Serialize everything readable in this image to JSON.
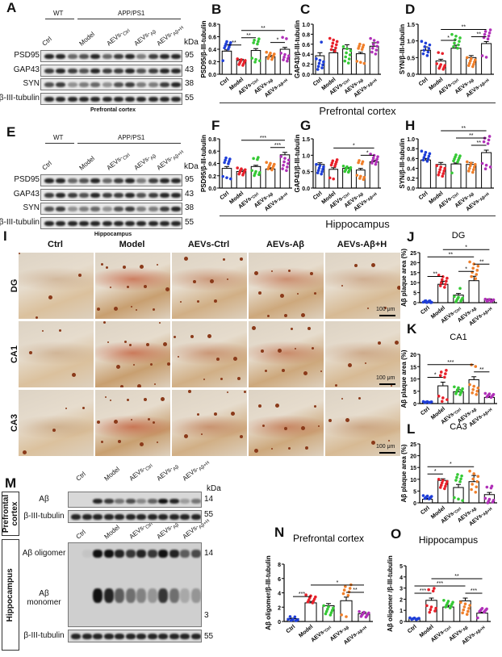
{
  "colors": {
    "Ctrl": "#1f3fd8",
    "Model": "#e8202a",
    "AEVs-Ctrl": "#35c935",
    "AEVs-Aβ": "#f07f2a",
    "AEVs-Aβ+H": "#b030b8"
  },
  "groups": [
    {
      "main": "Ctrl",
      "sub": ""
    },
    {
      "main": "Model",
      "sub": ""
    },
    {
      "main": "AEVs-",
      "sub": "Ctrl"
    },
    {
      "main": "AEVs-",
      "sub": "Aβ"
    },
    {
      "main": "AEVs-",
      "sub": "Aβ+H"
    }
  ],
  "panelA": {
    "letter": "A",
    "wt": "WT",
    "app": "APP/PS1",
    "kda": "kDa",
    "rows": [
      "PSD95",
      "GAP43",
      "SYN",
      "β-III-tubulin"
    ],
    "sizes": [
      "95",
      "43",
      "38",
      "55"
    ],
    "caption": "Prefrontal cortex"
  },
  "panelE": {
    "letter": "E",
    "wt": "WT",
    "app": "APP/PS1",
    "kda": "kDa",
    "rows": [
      "PSD95",
      "GAP43",
      "SYN",
      "β-III-tubulin"
    ],
    "sizes": [
      "95",
      "43",
      "38",
      "55"
    ],
    "caption": "Hippocampus"
  },
  "captions": {
    "prefrontal": "Prefrontal cortex",
    "hippocampus": "Hippocampus"
  },
  "panelI": {
    "letter": "I",
    "columns": [
      "Ctrl",
      "Model",
      "AEVs-Ctrl",
      "AEVs-Aβ",
      "AEVs-Aβ+H"
    ],
    "rows": [
      "DG",
      "CA1",
      "CA3"
    ],
    "scale": "100 μm"
  },
  "panelM": {
    "letter": "M",
    "kda": "kDa",
    "pfc_label": "Prefrontal cortex",
    "hip_label": "Hippocampus",
    "pfc_rows": [
      "Aβ",
      "β-III-tubulin"
    ],
    "pfc_sizes": [
      "14",
      "55"
    ],
    "hip_rows": [
      "Aβ oligomer",
      "Aβ monomer",
      "β-III-tubulin"
    ],
    "hip_sizes": [
      "14",
      "3",
      "55"
    ]
  },
  "chart_data": [
    {
      "id": "B",
      "type": "bar",
      "title": "",
      "ylabel": "PSD95/β-III-tubulin",
      "ylim": [
        0,
        0.8
      ],
      "ticks": [
        "0.0",
        "0.2",
        "0.4",
        "0.6",
        "0.8"
      ],
      "values": [
        0.37,
        0.22,
        0.38,
        0.28,
        0.4
      ],
      "sem": [
        0.02,
        0.02,
        0.03,
        0.02,
        0.03
      ],
      "sig": [
        [
          0,
          1,
          "**"
        ],
        [
          1,
          2,
          "**"
        ],
        [
          1,
          4,
          "**"
        ],
        [
          3,
          4,
          "*"
        ]
      ]
    },
    {
      "id": "C",
      "type": "bar",
      "title": "",
      "ylabel": "GAP43/β-III-tubulin",
      "ylim": [
        0,
        1.0
      ],
      "ticks": [
        "0.0",
        "0.2",
        "0.4",
        "0.6",
        "0.8",
        "1.0"
      ],
      "values": [
        0.37,
        0.43,
        0.51,
        0.41,
        0.56
      ],
      "sem": [
        0.06,
        0.06,
        0.08,
        0.03,
        0.07
      ],
      "sig": []
    },
    {
      "id": "D",
      "type": "bar",
      "title": "",
      "ylabel": "SYN/β-III-tubulin",
      "ylim": [
        0,
        1.5
      ],
      "ticks": [
        "0.0",
        "0.5",
        "1.0",
        "1.5"
      ],
      "values": [
        0.72,
        0.4,
        0.78,
        0.5,
        0.92
      ],
      "sem": [
        0.1,
        0.05,
        0.09,
        0.06,
        0.06
      ],
      "sig": [
        [
          1,
          2,
          "*"
        ],
        [
          1,
          4,
          "**"
        ],
        [
          3,
          4,
          "**"
        ]
      ]
    },
    {
      "id": "F",
      "type": "bar",
      "title": "",
      "ylabel": "PSD95/β-III-tubulin",
      "ylim": [
        0,
        0.8
      ],
      "ticks": [
        "0.0",
        "0.2",
        "0.4",
        "0.6",
        "0.8"
      ],
      "values": [
        0.32,
        0.27,
        0.35,
        0.31,
        0.54
      ],
      "sem": [
        0.03,
        0.02,
        0.02,
        0.02,
        0.04
      ],
      "sig": [
        [
          1,
          4,
          "***"
        ],
        [
          3,
          4,
          "***"
        ]
      ]
    },
    {
      "id": "G",
      "type": "bar",
      "title": "",
      "ylabel": "GAP43/β-III-tubulin",
      "ylim": [
        0,
        1.5
      ],
      "ticks": [
        "0.0",
        "0.5",
        "1.0",
        "1.5"
      ],
      "values": [
        0.72,
        0.57,
        0.6,
        0.55,
        0.8
      ],
      "sem": [
        0.05,
        0.05,
        0.02,
        0.05,
        0.05
      ],
      "sig": [
        [
          1,
          4,
          "*"
        ],
        [
          3,
          4,
          "*"
        ]
      ]
    },
    {
      "id": "H",
      "type": "bar",
      "title": "",
      "ylabel": "SYN/β-III-tubulin",
      "ylim": [
        0,
        1.0
      ],
      "ticks": [
        "0.0",
        "0.2",
        "0.4",
        "0.6",
        "0.8",
        "1.0"
      ],
      "values": [
        0.57,
        0.48,
        0.49,
        0.48,
        0.72
      ],
      "sem": [
        0.03,
        0.04,
        0.02,
        0.04,
        0.05
      ],
      "sig": [
        [
          1,
          4,
          "**"
        ],
        [
          2,
          4,
          "**"
        ],
        [
          3,
          4,
          "**"
        ]
      ]
    },
    {
      "id": "J",
      "type": "bar",
      "title": "DG",
      "ylabel": "Aβ plaque area (%)",
      "ylim": [
        0,
        25
      ],
      "ticks": [
        "0",
        "5",
        "10",
        "15",
        "20",
        "25"
      ],
      "values": [
        0.5,
        9.2,
        3.8,
        11,
        1.6
      ],
      "sem": [
        0.1,
        1.5,
        0.8,
        2.2,
        0.3
      ],
      "sig": [
        [
          0,
          1,
          "**"
        ],
        [
          0,
          3,
          "**"
        ],
        [
          1,
          4,
          "*"
        ],
        [
          2,
          3,
          "*"
        ],
        [
          3,
          4,
          "**"
        ]
      ]
    },
    {
      "id": "K",
      "type": "bar",
      "title": "CA1",
      "ylabel": "Aβ plaque area (%)",
      "ylim": [
        0,
        20
      ],
      "ticks": [
        "0",
        "5",
        "10",
        "15",
        "20"
      ],
      "values": [
        0.7,
        7.2,
        4.8,
        9.7,
        2.5
      ],
      "sem": [
        0.1,
        1.5,
        0.8,
        1.2,
        0.4
      ],
      "sig": [
        [
          0,
          1,
          "*"
        ],
        [
          0,
          3,
          "***"
        ],
        [
          3,
          4,
          "**"
        ]
      ]
    },
    {
      "id": "L",
      "type": "bar",
      "title": "CA3",
      "ylabel": "Aβ plaque area (%)",
      "ylim": [
        0,
        25
      ],
      "ticks": [
        "0",
        "5",
        "10",
        "15",
        "20",
        "25"
      ],
      "values": [
        1.5,
        9.5,
        6.5,
        9.0,
        3.5
      ],
      "sem": [
        0.4,
        0.7,
        1.3,
        2.6,
        0.9
      ],
      "sig": [
        [
          0,
          1,
          "*"
        ],
        [
          0,
          3,
          "*"
        ]
      ]
    },
    {
      "id": "N",
      "type": "bar",
      "title": "Prefrontal cortex",
      "ylabel": "Aβ oligomer/β-III-tubulin",
      "ylim": [
        0,
        8
      ],
      "ticks": [
        "0",
        "2",
        "4",
        "6",
        "8"
      ],
      "values": [
        0.4,
        2.6,
        2.2,
        2.9,
        1.1
      ],
      "sem": [
        0.06,
        0.2,
        0.3,
        0.5,
        0.2
      ],
      "sig": [
        [
          0,
          1,
          "***"
        ],
        [
          1,
          4,
          "*"
        ],
        [
          3,
          4,
          "**"
        ]
      ]
    },
    {
      "id": "O",
      "type": "bar",
      "title": "Hippocampus",
      "ylabel": "Aβ oligomer /β-III-tubulin",
      "ylim": [
        0,
        5
      ],
      "ticks": [
        "0",
        "1",
        "2",
        "3",
        "4",
        "5"
      ],
      "values": [
        0.25,
        1.9,
        1.3,
        1.85,
        0.75
      ],
      "sem": [
        0.04,
        0.2,
        0.15,
        0.25,
        0.08
      ],
      "sig": [
        [
          0,
          1,
          "***"
        ],
        [
          0,
          3,
          "***"
        ],
        [
          1,
          4,
          "**"
        ],
        [
          3,
          4,
          "***"
        ]
      ]
    }
  ]
}
